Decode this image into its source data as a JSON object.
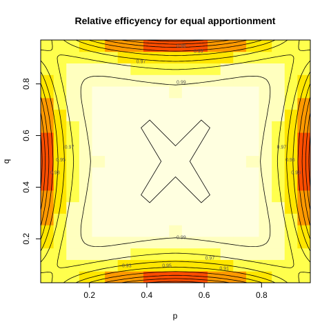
{
  "chart_data": {
    "type": "heatmap",
    "title": "Relative efficyency for equal apportionment",
    "xlabel": "p",
    "ylabel": "q",
    "xlim": [
      0.03,
      0.97
    ],
    "ylim": [
      0.03,
      0.97
    ],
    "x_ticks": [
      "0.2",
      "0.4",
      "0.6",
      "0.8"
    ],
    "y_ticks": [
      "0.2",
      "0.4",
      "0.6",
      "0.8"
    ],
    "x_tick_values": [
      0.2,
      0.4,
      0.6,
      0.8
    ],
    "y_tick_values": [
      0.2,
      0.4,
      0.6,
      0.8
    ],
    "grid": false,
    "color_scheme": [
      "#FF0000",
      "#FF4D00",
      "#FF9900",
      "#FFE600",
      "#FFFF4D",
      "#FFFFBF",
      "#FFFFE0"
    ],
    "contour_levels": [
      0.85,
      0.87,
      0.89,
      0.91,
      0.93,
      0.95,
      0.97,
      0.99
    ],
    "contour_label_texts": [
      "0.99",
      "0.97",
      "0.95",
      "0.93",
      "0.91",
      "0.99",
      "0.97",
      "0.95",
      "0.93",
      "0.97",
      "0.95",
      "0.93",
      "0.97",
      "0.95",
      "0.93"
    ],
    "heatmap_color_rule": "color index = max(|p - 0.5|, |q - 0.5|) adjusted so edge midpoints are red and corners light"
  }
}
